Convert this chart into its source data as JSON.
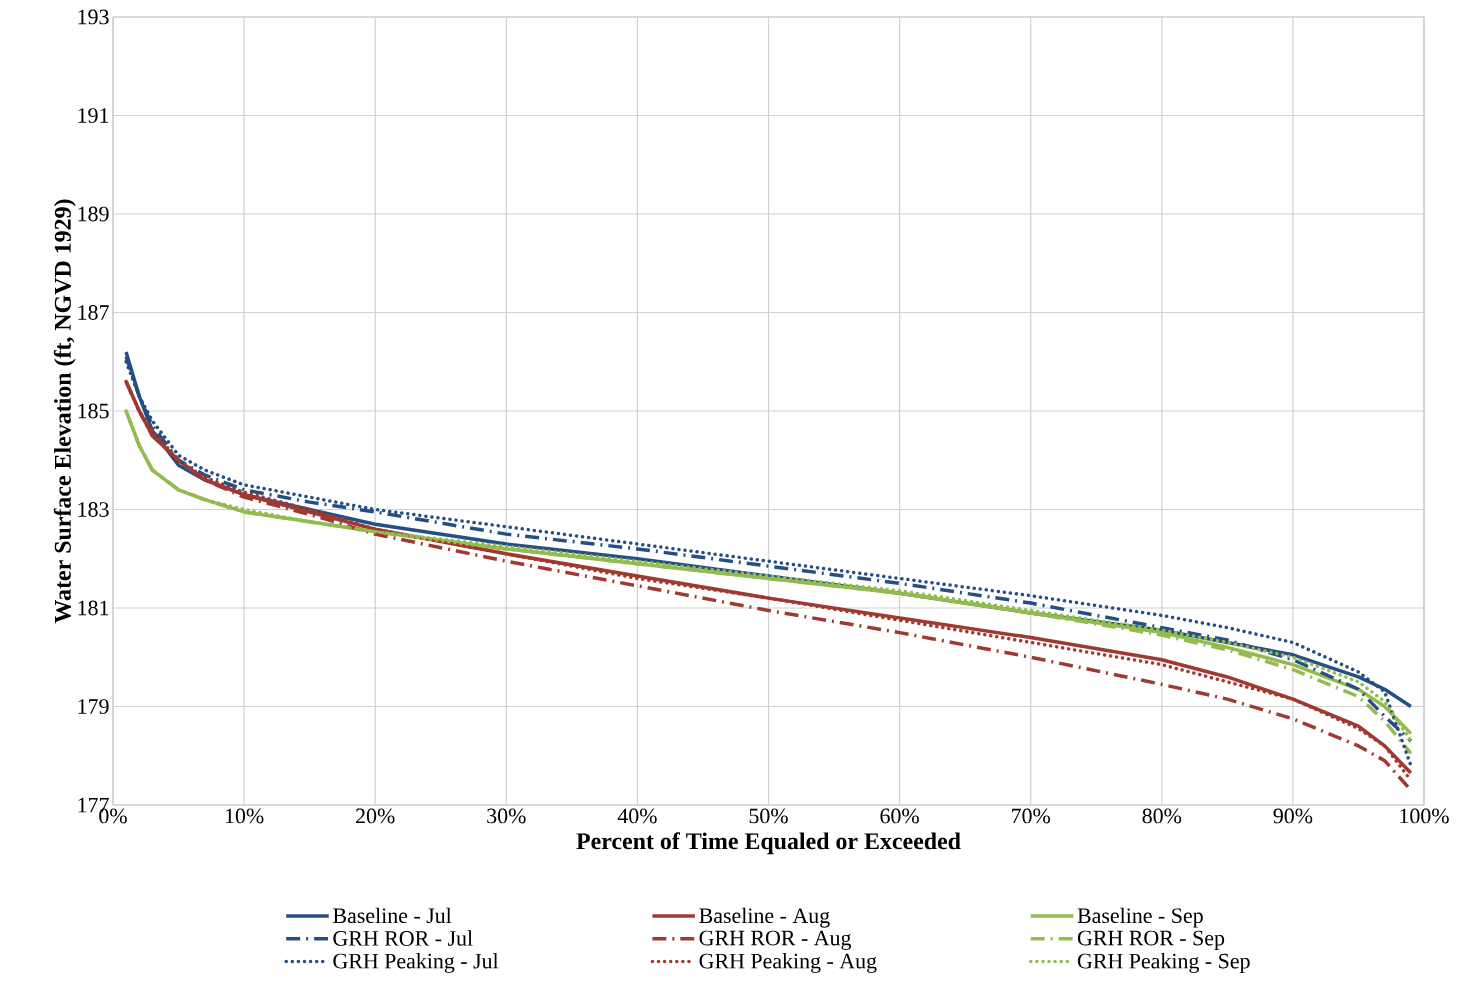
{
  "chart_data": {
    "type": "line",
    "xlabel": "Percent of Time Equaled or Exceeded",
    "ylabel": "Water Surface Elevation (ft, NGVD 1929)",
    "xlim": [
      0,
      100
    ],
    "ylim": [
      177,
      193
    ],
    "xticks": [
      {
        "value": 0,
        "label": "0%"
      },
      {
        "value": 10,
        "label": "10%"
      },
      {
        "value": 20,
        "label": "20%"
      },
      {
        "value": 30,
        "label": "30%"
      },
      {
        "value": 40,
        "label": "40%"
      },
      {
        "value": 50,
        "label": "50%"
      },
      {
        "value": 60,
        "label": "60%"
      },
      {
        "value": 70,
        "label": "70%"
      },
      {
        "value": 80,
        "label": "80%"
      },
      {
        "value": 90,
        "label": "90%"
      },
      {
        "value": 100,
        "label": "100%"
      }
    ],
    "yticks": [
      177,
      179,
      181,
      183,
      185,
      187,
      189,
      191,
      193
    ],
    "grid": true,
    "legend": "bottom",
    "marker": "none",
    "x": [
      1,
      2,
      3,
      5,
      7,
      10,
      15,
      20,
      30,
      40,
      50,
      60,
      70,
      80,
      85,
      90,
      95,
      97,
      99
    ],
    "series": [
      {
        "name": "Baseline - Jul",
        "color": "#244f85",
        "line_style": "solid",
        "values": [
          186.2,
          185.3,
          184.6,
          183.9,
          183.6,
          183.3,
          183.0,
          182.7,
          182.3,
          182.0,
          181.65,
          181.3,
          180.9,
          180.55,
          180.3,
          180.05,
          179.6,
          179.35,
          179.0
        ]
      },
      {
        "name": "Baseline - Aug",
        "color": "#a0392f",
        "line_style": "solid",
        "values": [
          185.6,
          185.0,
          184.5,
          184.0,
          183.6,
          183.3,
          182.95,
          182.6,
          182.1,
          181.65,
          181.2,
          180.8,
          180.4,
          179.95,
          179.6,
          179.15,
          178.6,
          178.2,
          177.65
        ]
      },
      {
        "name": "Baseline - Sep",
        "color": "#93bb4f",
        "line_style": "solid",
        "values": [
          185.0,
          184.3,
          183.8,
          183.4,
          183.2,
          182.95,
          182.75,
          182.55,
          182.2,
          181.9,
          181.6,
          181.3,
          180.9,
          180.5,
          180.2,
          179.85,
          179.35,
          179.0,
          178.45
        ]
      },
      {
        "name": "GRH ROR - Jul",
        "color": "#244f85",
        "line_style": "dashed",
        "values": [
          186.1,
          185.3,
          184.7,
          184.0,
          183.7,
          183.4,
          183.15,
          182.95,
          182.5,
          182.2,
          181.85,
          181.5,
          181.1,
          180.6,
          180.35,
          179.95,
          179.35,
          178.8,
          178.3
        ]
      },
      {
        "name": "GRH ROR - Aug",
        "color": "#a0392f",
        "line_style": "dashed",
        "values": [
          185.6,
          185.0,
          184.5,
          184.0,
          183.6,
          183.25,
          182.9,
          182.5,
          181.95,
          181.45,
          180.95,
          180.5,
          180.0,
          179.45,
          179.15,
          178.75,
          178.2,
          177.9,
          177.3
        ]
      },
      {
        "name": "GRH ROR - Sep",
        "color": "#93bb4f",
        "line_style": "dashed",
        "values": [
          185.0,
          184.3,
          183.8,
          183.4,
          183.2,
          182.95,
          182.75,
          182.55,
          182.2,
          181.9,
          181.6,
          181.3,
          180.9,
          180.45,
          180.15,
          179.75,
          179.2,
          178.7,
          178.05
        ]
      },
      {
        "name": "GRH Peaking - Jul",
        "color": "#244f85",
        "line_style": "dotted",
        "values": [
          186.0,
          185.3,
          184.8,
          184.1,
          183.8,
          183.5,
          183.25,
          183.0,
          182.65,
          182.3,
          181.95,
          181.6,
          181.25,
          180.85,
          180.6,
          180.3,
          179.7,
          179.3,
          177.8
        ]
      },
      {
        "name": "GRH Peaking - Aug",
        "color": "#a0392f",
        "line_style": "dotted",
        "values": [
          185.6,
          185.0,
          184.6,
          184.0,
          183.65,
          183.35,
          183.0,
          182.6,
          182.1,
          181.6,
          181.2,
          180.75,
          180.3,
          179.85,
          179.5,
          179.15,
          178.55,
          178.2,
          177.5
        ]
      },
      {
        "name": "GRH Peaking - Sep",
        "color": "#93bb4f",
        "line_style": "dotted",
        "values": [
          185.0,
          184.3,
          183.8,
          183.4,
          183.2,
          183.0,
          182.75,
          182.55,
          182.25,
          181.95,
          181.65,
          181.35,
          180.95,
          180.55,
          180.3,
          180.0,
          179.5,
          179.1,
          178.3
        ]
      }
    ]
  }
}
